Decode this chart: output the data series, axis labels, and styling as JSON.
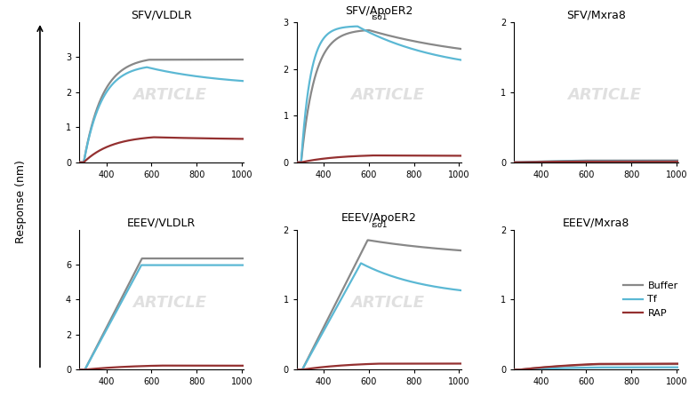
{
  "titles_main": [
    [
      "SFV/VLDLR",
      "SFV/ApoER2",
      "SFV/Mxra8"
    ],
    [
      "EEEV/VLDLR",
      "EEEV/ApoER2",
      "EEEV/Mxra8"
    ]
  ],
  "titles_sub": [
    [
      "",
      "iso1",
      ""
    ],
    [
      "",
      "iso1",
      ""
    ]
  ],
  "xlim": [
    280,
    1010
  ],
  "xticks": [
    400,
    600,
    800,
    1000
  ],
  "ylims": [
    [
      [
        0,
        4
      ],
      [
        0,
        3
      ],
      [
        0,
        2
      ]
    ],
    [
      [
        0,
        8
      ],
      [
        0,
        2
      ],
      [
        0,
        2
      ]
    ]
  ],
  "yticks": [
    [
      [
        0,
        1,
        2,
        3
      ],
      [
        0,
        1,
        2,
        3
      ],
      [
        0,
        1,
        2
      ]
    ],
    [
      [
        0,
        2,
        4,
        6
      ],
      [
        0,
        1,
        2
      ],
      [
        0,
        1,
        2
      ]
    ]
  ],
  "colors": {
    "buffer": "#888888",
    "tf": "#5bb8d4",
    "rap": "#943030"
  },
  "lw": 1.6,
  "ylabel": "Response (nm)",
  "background_color": "#ffffff",
  "legend_labels": [
    "Buffer",
    "Tf",
    "RAP"
  ],
  "legend_colors": [
    "#888888",
    "#5bb8d4",
    "#943030"
  ],
  "watermark_color": "#cccccc",
  "watermark_alpha": 0.6
}
